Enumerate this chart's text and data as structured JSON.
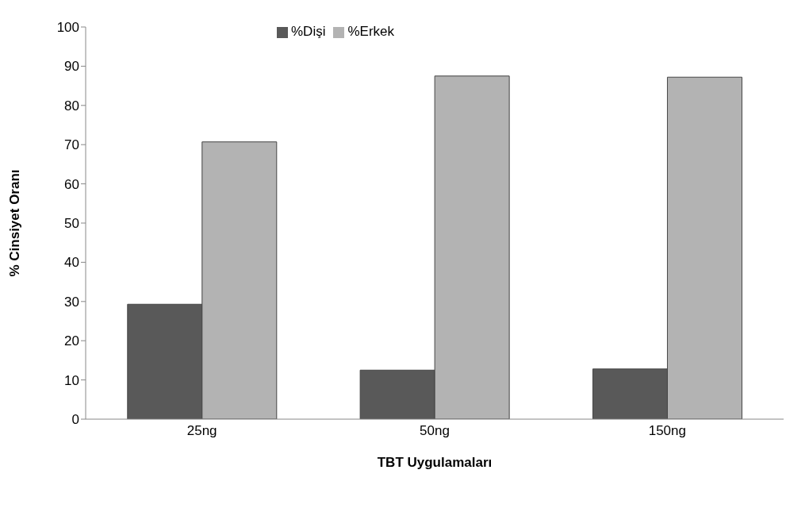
{
  "chart_data": {
    "type": "bar",
    "xlabel": "TBT Uygulamaları",
    "ylabel": "% Cinsiyet Oranı",
    "categories": [
      "25ng",
      "50ng",
      "150ng"
    ],
    "series": [
      {
        "name": "%Dişi",
        "color": "#595959",
        "values": [
          29.3,
          12.5,
          12.8
        ]
      },
      {
        "name": "%Erkek",
        "color": "#b3b3b3",
        "values": [
          70.7,
          87.5,
          87.2
        ]
      }
    ],
    "ylim": [
      0,
      100
    ],
    "yticks": [
      0,
      10,
      20,
      30,
      40,
      50,
      60,
      70,
      80,
      90,
      100
    ],
    "grid": false,
    "legend": "top"
  }
}
